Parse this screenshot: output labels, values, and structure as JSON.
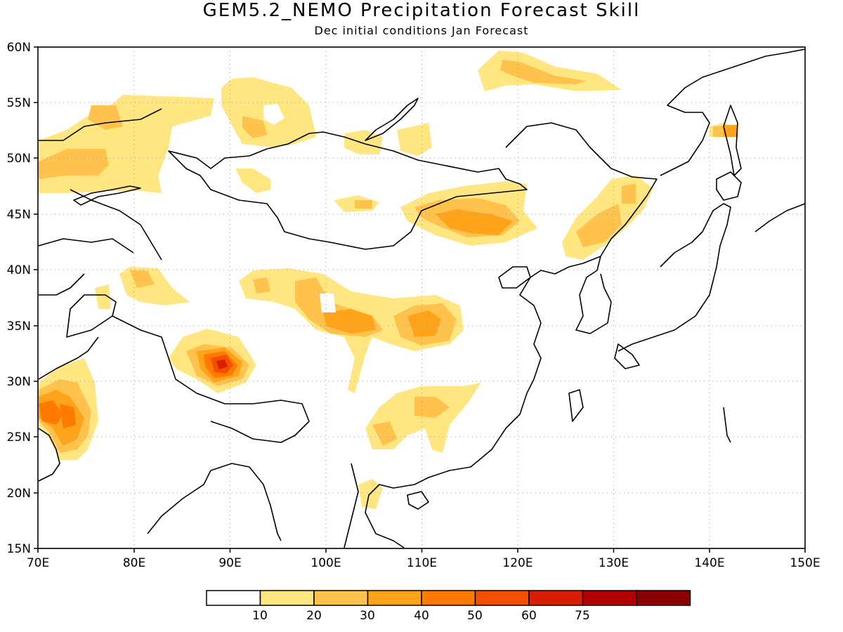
{
  "title": "GEM5.2_NEMO Precipitation Forecast Skill",
  "subtitle": "Dec initial conditions  Jan Forecast",
  "x_ticks": [
    "70E",
    "80E",
    "90E",
    "100E",
    "110E",
    "120E",
    "130E",
    "140E",
    "150E"
  ],
  "y_ticks": [
    "60N",
    "55N",
    "50N",
    "45N",
    "40N",
    "35N",
    "30N",
    "25N",
    "20N",
    "15N"
  ],
  "colorbar": {
    "colors": [
      "#ffffff",
      "#ffe680",
      "#ffc34d",
      "#ffa31a",
      "#ff7a00",
      "#f24f00",
      "#d81e00",
      "#b00000",
      "#8a0000"
    ],
    "labels": [
      "10",
      "20",
      "30",
      "40",
      "50",
      "60",
      "75"
    ]
  },
  "chart_data": {
    "type": "heatmap",
    "title": "GEM5.2_NEMO Precipitation Forecast Skill",
    "subtitle": "Dec initial conditions  Jan Forecast",
    "xlim": [
      70,
      150
    ],
    "ylim": [
      15,
      60
    ],
    "grid": true,
    "levels": [
      10,
      20,
      30,
      40,
      50,
      60,
      75
    ],
    "regions": [
      {
        "lon": 88.5,
        "lat": 31.5,
        "peak": 60
      },
      {
        "lon": 72.5,
        "lat": 27,
        "peak": 50
      },
      {
        "lon": 104,
        "lat": 35,
        "peak": 40
      },
      {
        "lon": 110.5,
        "lat": 35.5,
        "peak": 40
      },
      {
        "lon": 114,
        "lat": 44,
        "peak": 40
      },
      {
        "lon": 72,
        "lat": 49.5,
        "peak": 30
      },
      {
        "lon": 120,
        "lat": 57.5,
        "peak": 30
      },
      {
        "lon": 112,
        "lat": 28,
        "peak": 30
      }
    ]
  }
}
